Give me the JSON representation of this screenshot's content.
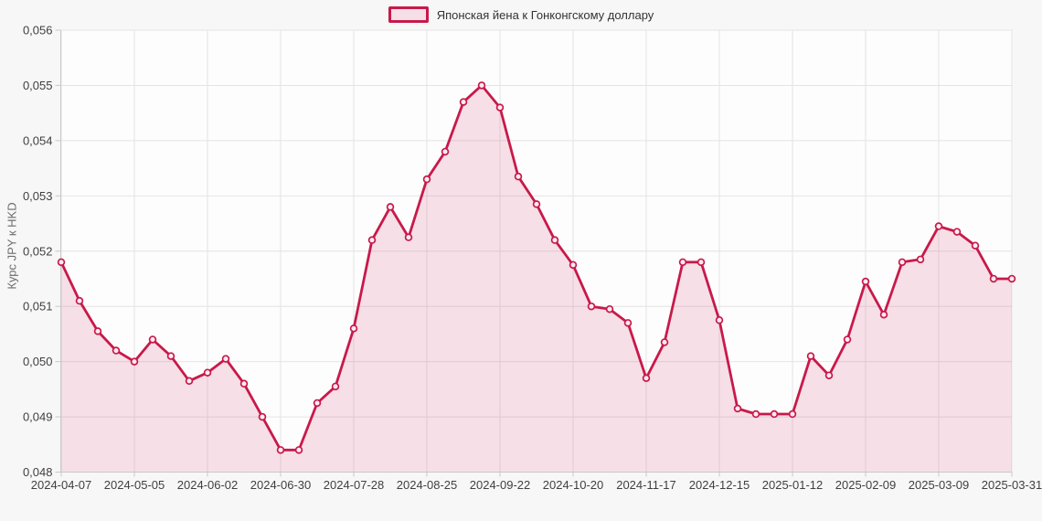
{
  "legend": {
    "label": "Японская йена к Гонконгскому доллару"
  },
  "chart_data": {
    "type": "area",
    "title": "Японская йена к Гонконгскому доллару",
    "xlabel": "",
    "ylabel": "Курс JPY к HKD",
    "ylim": [
      0.048,
      0.056
    ],
    "grid": true,
    "legend_position": "top-center",
    "x_tick_every": 4,
    "y_ticks": [
      {
        "value": 0.048,
        "label": "0,048"
      },
      {
        "value": 0.049,
        "label": "0,049"
      },
      {
        "value": 0.05,
        "label": "0,050"
      },
      {
        "value": 0.051,
        "label": "0,051"
      },
      {
        "value": 0.052,
        "label": "0,052"
      },
      {
        "value": 0.053,
        "label": "0,053"
      },
      {
        "value": 0.054,
        "label": "0,054"
      },
      {
        "value": 0.055,
        "label": "0,055"
      },
      {
        "value": 0.056,
        "label": "0,056"
      }
    ],
    "x": [
      "2024-04-07",
      "2024-04-14",
      "2024-04-21",
      "2024-04-28",
      "2024-05-05",
      "2024-05-12",
      "2024-05-19",
      "2024-05-26",
      "2024-06-02",
      "2024-06-09",
      "2024-06-16",
      "2024-06-23",
      "2024-06-30",
      "2024-07-07",
      "2024-07-14",
      "2024-07-21",
      "2024-07-28",
      "2024-08-04",
      "2024-08-11",
      "2024-08-18",
      "2024-08-25",
      "2024-09-01",
      "2024-09-08",
      "2024-09-15",
      "2024-09-22",
      "2024-09-29",
      "2024-10-06",
      "2024-10-13",
      "2024-10-20",
      "2024-10-27",
      "2024-11-03",
      "2024-11-10",
      "2024-11-17",
      "2024-11-24",
      "2024-12-01",
      "2024-12-08",
      "2024-12-15",
      "2024-12-22",
      "2024-12-29",
      "2025-01-05",
      "2025-01-12",
      "2025-01-19",
      "2025-01-26",
      "2025-02-02",
      "2025-02-09",
      "2025-02-16",
      "2025-02-23",
      "2025-03-02",
      "2025-03-09",
      "2025-03-16",
      "2025-03-23",
      "2025-03-30",
      "2025-03-31"
    ],
    "values": [
      0.0518,
      0.0511,
      0.05055,
      0.0502,
      0.05,
      0.0504,
      0.0501,
      0.04965,
      0.0498,
      0.05005,
      0.0496,
      0.049,
      0.0484,
      0.0484,
      0.04925,
      0.04955,
      0.0506,
      0.0522,
      0.0528,
      0.05225,
      0.0533,
      0.0538,
      0.0547,
      0.055,
      0.0546,
      0.05335,
      0.05285,
      0.0522,
      0.05175,
      0.051,
      0.05095,
      0.0507,
      0.0497,
      0.05035,
      0.0518,
      0.0518,
      0.05075,
      0.04915,
      0.04905,
      0.04905,
      0.04905,
      0.0501,
      0.04975,
      0.0504,
      0.05145,
      0.05085,
      0.0518,
      0.05185,
      0.05245,
      0.05235,
      0.0521,
      0.0515,
      0.0515
    ],
    "colors": {
      "line": "#c8194b",
      "area_fill": "rgba(201,25,75,0.13)",
      "marker_fill": "#fbecf1",
      "grid": "#e4e4e4",
      "plot_border": "#e6e6e6",
      "axis": "#c9c9c9",
      "plot_bg": "#fdfdfd",
      "page_bg": "#f7f7f7",
      "tick_text": "#404040",
      "axis_title_text": "#6b6b6b",
      "legend_text": "#333333",
      "legend_swatch_fill": "#f7dfe7"
    }
  }
}
